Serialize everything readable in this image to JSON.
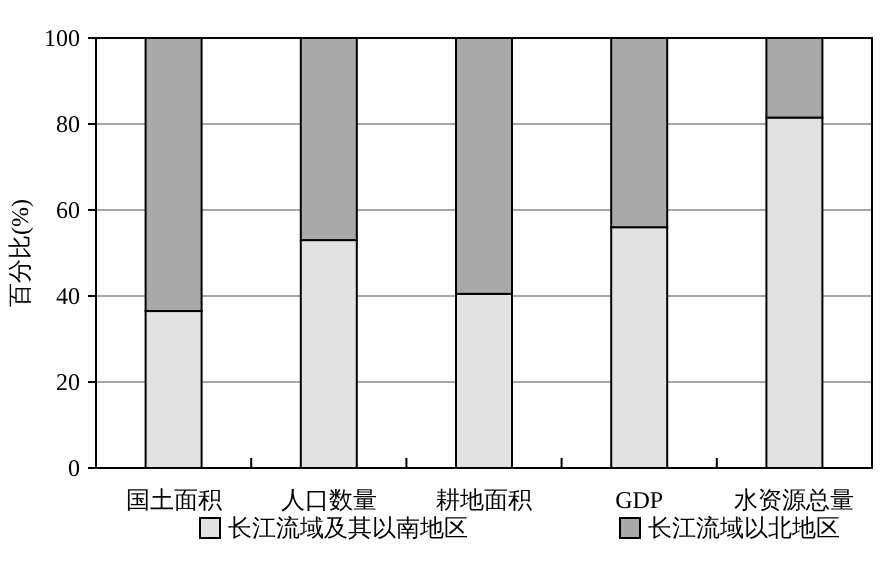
{
  "chart_data": {
    "type": "bar",
    "stacked": true,
    "ylabel": "百分比(%)",
    "categories": [
      "国土面积",
      "人口数量",
      "耕地面积",
      "GDP",
      "水资源总量"
    ],
    "series": [
      {
        "name": "长江流域及其以南地区",
        "color": "#e2e2e2",
        "values": [
          36.5,
          53,
          40.5,
          56,
          81.5
        ]
      },
      {
        "name": "长江流域以北地区",
        "color": "#a9a9a9",
        "values": [
          63.5,
          47,
          59.5,
          44,
          18.5
        ]
      }
    ],
    "ylim": [
      0,
      100
    ],
    "yticks": [
      0,
      20,
      40,
      60,
      80,
      100
    ],
    "grid": "y",
    "legend": "bottom"
  }
}
